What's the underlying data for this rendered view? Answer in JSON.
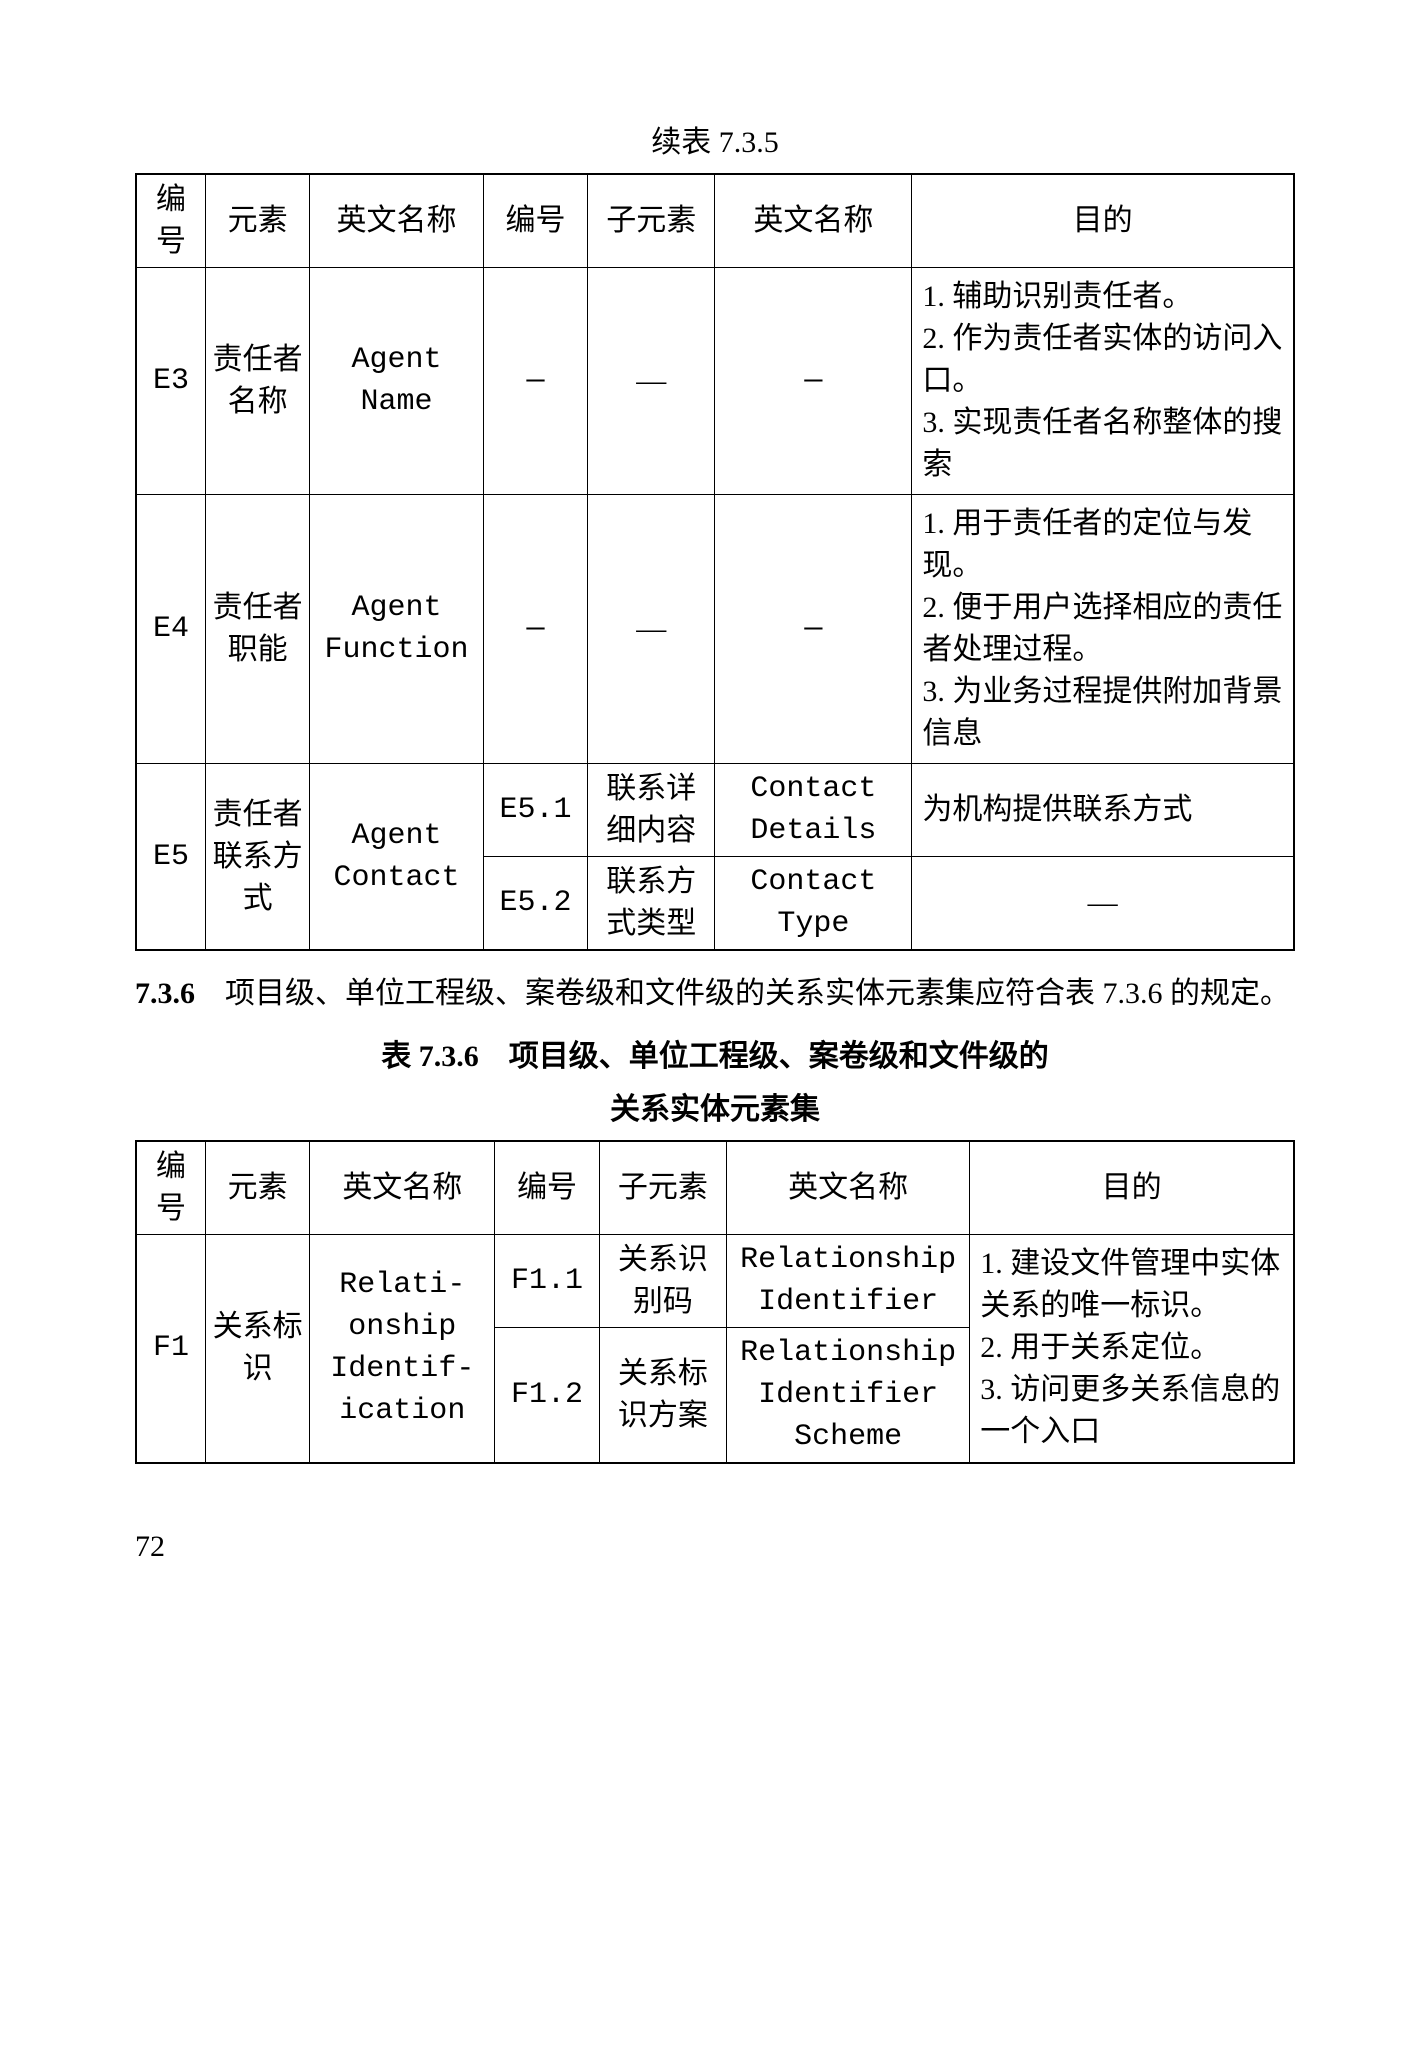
{
  "caption1": "续表 7.3.5",
  "table1": {
    "headers": [
      "编号",
      "元素",
      "英文名称",
      "编号",
      "子元素",
      "英文名称",
      "目的"
    ],
    "dash": "—",
    "rows": [
      {
        "id": "E3",
        "elem": "责任者名称",
        "en": "Agent Name",
        "subrows": [
          {
            "purpose": "1. 辅助识别责任者。\n2. 作为责任者实体的访问入口。\n3. 实现责任者名称整体的搜索"
          }
        ]
      },
      {
        "id": "E4",
        "elem": "责任者职能",
        "en": "Agent Function",
        "subrows": [
          {
            "purpose": "1. 用于责任者的定位与发现。\n2. 便于用户选择相应的责任者处理过程。\n3. 为业务过程提供附加背景信息"
          }
        ]
      },
      {
        "id": "E5",
        "elem": "责任者联系方式",
        "en": "Agent Contact",
        "subrows": [
          {
            "sid": "E5.1",
            "selem": "联系详细内容",
            "sen": "Contact Details",
            "purpose": "为机构提供联系方式"
          },
          {
            "sid": "E5.2",
            "selem": "联系方式类型",
            "sen": "Contact Type",
            "purpose": "—"
          }
        ]
      }
    ]
  },
  "para": {
    "num": "7.3.6",
    "text": "　项目级、单位工程级、案卷级和文件级的关系实体元素集应符合表 7.3.6 的规定。"
  },
  "caption2_line1": "表 7.3.6　项目级、单位工程级、案卷级和文件级的",
  "caption2_line2": "关系实体元素集",
  "table2": {
    "headers": [
      "编号",
      "元素",
      "英文名称",
      "编号",
      "子元素",
      "英文名称",
      "目的"
    ],
    "rows": [
      {
        "id": "F1",
        "elem": "关系标识",
        "en": "Relati-onship Identif-ication",
        "purpose": "1. 建设文件管理中实体关系的唯一标识。\n2. 用于关系定位。\n3. 访问更多关系信息的一个入口",
        "subrows": [
          {
            "sid": "F1.1",
            "selem": "关系识别码",
            "sen": "Relationship Identifier"
          },
          {
            "sid": "F1.2",
            "selem": "关系标识方案",
            "sen": "Relationship Identifier Scheme"
          }
        ]
      }
    ]
  },
  "pageNum": "72"
}
